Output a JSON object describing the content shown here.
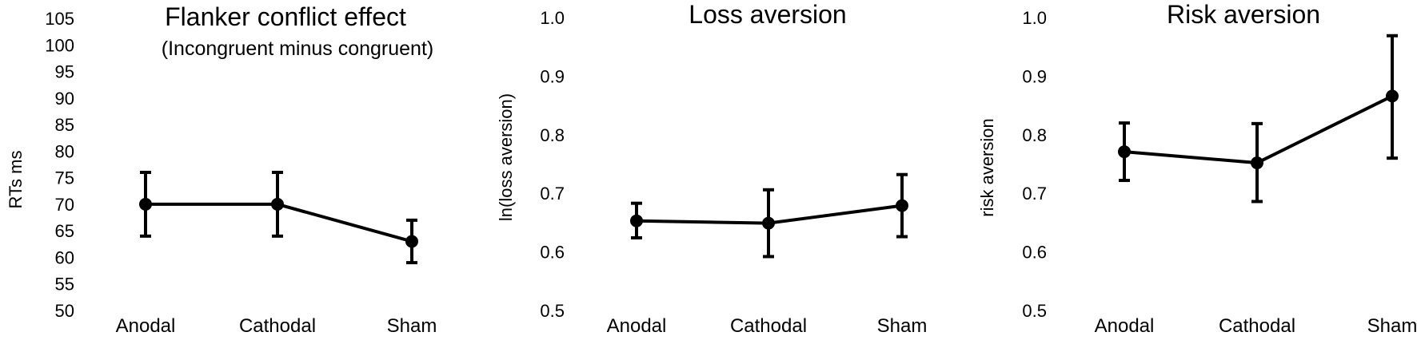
{
  "chart_data": [
    {
      "type": "line",
      "title": "Flanker conflict effect",
      "subtitle": "(Incongruent minus congruent)",
      "xlabel": "",
      "ylabel": "RTs ms",
      "ylim": [
        50,
        105
      ],
      "yticks": [
        50,
        55,
        60,
        65,
        70,
        75,
        80,
        85,
        90,
        95,
        100,
        105
      ],
      "ytick_labels": [
        "50",
        "55",
        "60",
        "65",
        "70",
        "75",
        "80",
        "85",
        "90",
        "95",
        "100",
        "105"
      ],
      "categories": [
        "Anodal",
        "Cathodal",
        "Sham"
      ],
      "values": [
        70,
        70,
        63
      ],
      "err_low": [
        64,
        64,
        59
      ],
      "err_high": [
        76,
        76,
        67
      ]
    },
    {
      "type": "line",
      "title": "Loss aversion",
      "subtitle": "",
      "xlabel": "",
      "ylabel": "ln(loss aversion)",
      "ylim": [
        0.5,
        1.0
      ],
      "yticks": [
        0.5,
        0.6,
        0.7,
        0.8,
        0.9,
        1.0
      ],
      "ytick_labels": [
        "0.5",
        "0.6",
        "0.7",
        "0.8",
        "0.9",
        "1.0"
      ],
      "categories": [
        "Anodal",
        "Cathodal",
        "Sham"
      ],
      "values": [
        0.653,
        0.649,
        0.679
      ],
      "err_low": [
        0.624,
        0.592,
        0.626
      ],
      "err_high": [
        0.683,
        0.706,
        0.732
      ]
    },
    {
      "type": "line",
      "title": "Risk aversion",
      "subtitle": "",
      "xlabel": "",
      "ylabel": "risk aversion",
      "ylim": [
        0.5,
        1.0
      ],
      "yticks": [
        0.5,
        0.6,
        0.7,
        0.8,
        0.9,
        1.0
      ],
      "ytick_labels": [
        "0.5",
        "0.6",
        "0.7",
        "0.8",
        "0.9",
        "1.0"
      ],
      "categories": [
        "Anodal",
        "Cathodal",
        "Sham"
      ],
      "values": [
        0.771,
        0.752,
        0.866
      ],
      "err_low": [
        0.722,
        0.686,
        0.76
      ],
      "err_high": [
        0.82,
        0.819,
        0.969
      ]
    }
  ]
}
